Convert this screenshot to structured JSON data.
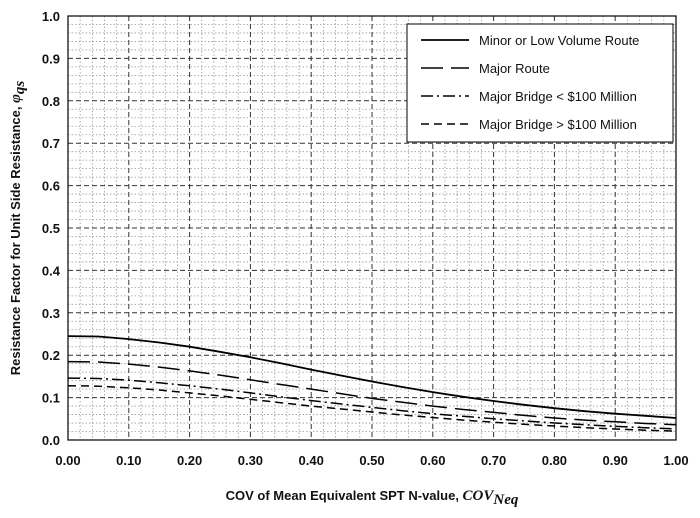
{
  "chart_data": {
    "type": "line",
    "xlabel": "COV of Mean Equivalent SPT N-value, ",
    "xlabel_italic": "COV",
    "xlabel_sub": "Neq",
    "ylabel": "Resistance Factor for Unit Side Resistance, ",
    "ylabel_symbol": "φ",
    "ylabel_sub": "qs",
    "xlim": [
      0,
      1
    ],
    "ylim": [
      0,
      1
    ],
    "xticks": [
      "0.00",
      "0.10",
      "0.20",
      "0.30",
      "0.40",
      "0.50",
      "0.60",
      "0.70",
      "0.80",
      "0.90",
      "1.00"
    ],
    "yticks": [
      "0.0",
      "0.1",
      "0.2",
      "0.3",
      "0.4",
      "0.5",
      "0.6",
      "0.7",
      "0.8",
      "0.9",
      "1.0"
    ],
    "grid": true,
    "legend_position": "top-right",
    "x": [
      0.0,
      0.05,
      0.1,
      0.15,
      0.2,
      0.25,
      0.3,
      0.35,
      0.4,
      0.45,
      0.5,
      0.55,
      0.6,
      0.65,
      0.7,
      0.75,
      0.8,
      0.85,
      0.9,
      0.95,
      1.0
    ],
    "series": [
      {
        "name": "Minor or Low Volume Route",
        "dash": "solid",
        "values": [
          0.245,
          0.244,
          0.238,
          0.23,
          0.22,
          0.208,
          0.195,
          0.181,
          0.166,
          0.152,
          0.138,
          0.125,
          0.113,
          0.102,
          0.092,
          0.083,
          0.075,
          0.068,
          0.062,
          0.057,
          0.052
        ]
      },
      {
        "name": "Major Route",
        "dash": "longdash",
        "values": [
          0.185,
          0.184,
          0.179,
          0.172,
          0.163,
          0.153,
          0.142,
          0.131,
          0.12,
          0.109,
          0.098,
          0.089,
          0.08,
          0.072,
          0.065,
          0.058,
          0.052,
          0.047,
          0.043,
          0.039,
          0.036
        ]
      },
      {
        "name": "Major Bridge < $100 Million",
        "dash": "dashdot",
        "values": [
          0.146,
          0.145,
          0.141,
          0.135,
          0.128,
          0.12,
          0.111,
          0.102,
          0.093,
          0.085,
          0.077,
          0.069,
          0.062,
          0.056,
          0.05,
          0.045,
          0.04,
          0.036,
          0.032,
          0.029,
          0.026
        ]
      },
      {
        "name": "Major Bridge > $100 Million",
        "dash": "shortdash",
        "values": [
          0.128,
          0.127,
          0.123,
          0.118,
          0.111,
          0.104,
          0.096,
          0.088,
          0.08,
          0.073,
          0.066,
          0.059,
          0.053,
          0.047,
          0.042,
          0.037,
          0.033,
          0.029,
          0.026,
          0.023,
          0.021
        ]
      }
    ]
  }
}
